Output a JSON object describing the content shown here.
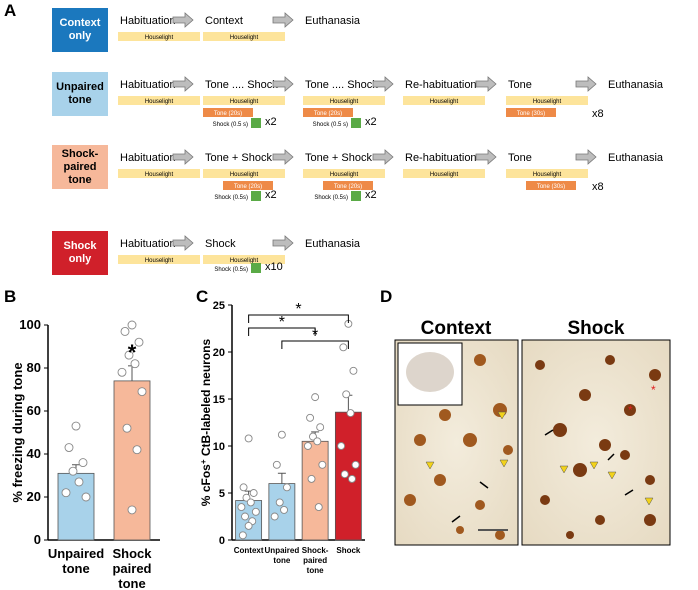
{
  "panel_labels": [
    "A",
    "B",
    "C",
    "D"
  ],
  "protocol": {
    "rows": [
      {
        "group": "Context only",
        "color": "#1b78be",
        "label_color": "#ffffff",
        "steps": [
          {
            "label": "Habituation",
            "houselight": "Houselight"
          },
          {
            "label": "Context",
            "houselight": "Houselight"
          },
          {
            "label": "Euthanasia"
          }
        ]
      },
      {
        "group": "Unpaired tone",
        "color": "#a8d2ea",
        "label_color": "#000000",
        "steps": [
          {
            "label": "Habituation",
            "houselight": "Houselight"
          },
          {
            "label": "Tone .... Shock",
            "houselight": "Houselight",
            "tone": "Tone (20s)",
            "shock": "Shock (0.5 s)",
            "repeat": "x2"
          },
          {
            "label": "Tone .... Shock",
            "houselight": "Houselight",
            "tone": "Tone (20s)",
            "shock": "Shock (0.5 s)",
            "repeat": "x2"
          },
          {
            "label": "Re-habituation",
            "houselight": "Houselight"
          },
          {
            "label": "Tone",
            "houselight": "Houselight",
            "tone": "Tone (30s)",
            "repeat": "x8"
          },
          {
            "label": "Euthanasia"
          }
        ]
      },
      {
        "group": "Shock-paired tone",
        "color": "#f6b89a",
        "label_color": "#000000",
        "steps": [
          {
            "label": "Habituation",
            "houselight": "Houselight"
          },
          {
            "label": "Tone + Shock",
            "houselight": "Houselight",
            "tone": "Tone (20s)",
            "shock": "Shock (0.5s)",
            "repeat": "x2"
          },
          {
            "label": "Tone + Shock",
            "houselight": "Houselight",
            "tone": "Tone (20s)",
            "shock": "Shock (0.5s)",
            "repeat": "x2"
          },
          {
            "label": "Re-habituation",
            "houselight": "Houselight"
          },
          {
            "label": "Tone",
            "houselight": "Houselight",
            "tone": "Tone (30s)",
            "repeat": "x8"
          },
          {
            "label": "Euthanasia"
          }
        ]
      },
      {
        "group": "Shock only",
        "color": "#d0202a",
        "label_color": "#ffffff",
        "steps": [
          {
            "label": "Habituation",
            "houselight": "Houselight"
          },
          {
            "label": "Shock",
            "houselight": "Houselight",
            "shock": "Shock (0.5s)",
            "repeat": "x10"
          },
          {
            "label": "Euthanasia"
          }
        ]
      }
    ]
  },
  "chart_data": [
    {
      "type": "bar",
      "ylabel": "% freezing during tone",
      "categories": [
        "Unpaired tone",
        "Shock paired tone"
      ],
      "values": [
        31,
        74
      ],
      "errors": [
        4,
        7
      ],
      "colors": [
        "#a8d2ea",
        "#f6b89a"
      ],
      "points": [
        [
          53,
          43,
          36,
          32,
          27,
          22,
          20
        ],
        [
          100,
          97,
          92,
          86,
          82,
          78,
          69,
          52,
          42,
          14
        ]
      ],
      "significance": [
        null,
        "*"
      ],
      "ylim": [
        0,
        100
      ],
      "yticks": [
        0,
        20,
        40,
        60,
        80,
        100
      ]
    },
    {
      "type": "bar",
      "ylabel": {
        "text": "% cFos",
        "superscript": "+",
        "rest": " CtB-labeled neurons"
      },
      "categories": [
        "Context",
        "Unpaired tone",
        "Shock-paired tone",
        "Shock"
      ],
      "values": [
        4.2,
        6.0,
        10.5,
        13.6
      ],
      "errors": [
        1.0,
        1.1,
        1.0,
        1.8
      ],
      "colors": [
        "#a8d2ea",
        "#a8d2ea",
        "#f6b89a",
        "#d0202a"
      ],
      "points": [
        [
          10.8,
          5.6,
          5,
          4.5,
          4,
          3.5,
          3,
          2.5,
          2,
          1.5,
          0.5
        ],
        [
          11.2,
          8,
          5.6,
          4,
          3.2,
          2.5
        ],
        [
          15.2,
          13,
          12,
          11,
          10.5,
          10,
          8,
          6.5,
          3.5
        ],
        [
          23,
          20.5,
          18,
          15.5,
          13.5,
          10,
          8,
          7,
          6.5
        ]
      ],
      "comparisons": [
        {
          "pair": [
            0,
            3
          ],
          "label": "*"
        },
        {
          "pair": [
            0,
            2
          ],
          "label": "*"
        },
        {
          "pair": [
            1,
            3
          ],
          "label": "*"
        }
      ],
      "ylim": [
        0,
        25
      ],
      "yticks": [
        0,
        5,
        10,
        15,
        20,
        25
      ]
    }
  ],
  "micrographs": {
    "titles": [
      "Context",
      "Shock"
    ]
  }
}
